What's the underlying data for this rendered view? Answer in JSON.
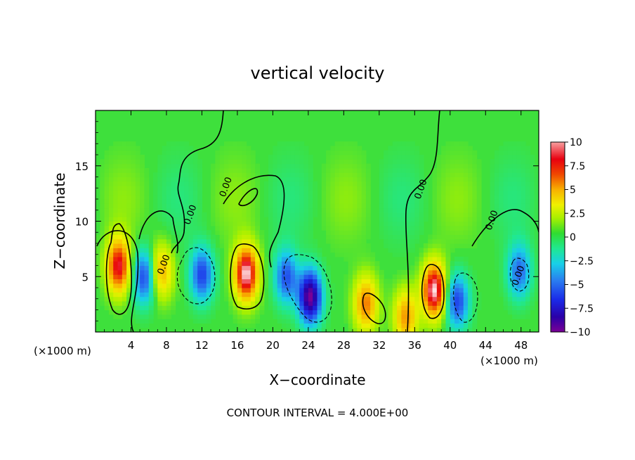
{
  "chart_data": {
    "type": "heatmap",
    "title": "vertical velocity",
    "xlabel": "X−coordinate",
    "ylabel": "Z−coordinate",
    "x_unit_left": "(×1000 m)",
    "x_unit_right": "(×1000 m)",
    "footer": "CONTOUR INTERVAL = 4.000E+00",
    "xlim": [
      0,
      50
    ],
    "ylim": [
      0,
      20
    ],
    "x_ticks": [
      4,
      8,
      12,
      16,
      20,
      24,
      28,
      32,
      36,
      40,
      44,
      48
    ],
    "y_ticks": [
      5,
      10,
      15
    ],
    "colorbar": {
      "range": [
        -10,
        10
      ],
      "ticks": [
        {
          "value": 10,
          "label": "10"
        },
        {
          "value": 7.5,
          "label": "7.5"
        },
        {
          "value": 5,
          "label": "5"
        },
        {
          "value": 2.5,
          "label": "2.5"
        },
        {
          "value": 0,
          "label": "0"
        },
        {
          "value": -2.5,
          "label": "−2.5"
        },
        {
          "value": -5,
          "label": "−5"
        },
        {
          "value": -7.5,
          "label": "−7.5"
        },
        {
          "value": -10,
          "label": "−10"
        }
      ]
    },
    "contour_label": "0.00",
    "contour_label_positions": [
      [
        11,
        10.5
      ],
      [
        8,
        6
      ],
      [
        15,
        13
      ],
      [
        37,
        12.8
      ],
      [
        45,
        10
      ],
      [
        48,
        5
      ]
    ],
    "features": [
      {
        "x": 2.6,
        "z": 6.0,
        "w": 8.5,
        "note": "updraft"
      },
      {
        "x": 17.0,
        "z": 5.3,
        "w": 10,
        "note": "strong updraft"
      },
      {
        "x": 38.2,
        "z": 3.8,
        "w": 10,
        "note": "strong updraft"
      },
      {
        "x": 30.5,
        "z": 2.6,
        "w": 6,
        "note": "updraft"
      },
      {
        "x": 35.0,
        "z": 1.4,
        "w": 5.5,
        "note": "updraft"
      },
      {
        "x": 7.4,
        "z": 5.5,
        "w": 5,
        "note": "updraft"
      },
      {
        "x": 12.0,
        "z": 5.2,
        "w": -6,
        "note": "downdraft"
      },
      {
        "x": 24.2,
        "z": 3.2,
        "w": -10,
        "note": "strong downdraft"
      },
      {
        "x": 21.5,
        "z": 5.0,
        "w": -5.5,
        "note": "downdraft"
      },
      {
        "x": 40.8,
        "z": 2.8,
        "w": -6,
        "note": "downdraft"
      },
      {
        "x": 5.5,
        "z": 5.0,
        "w": -6,
        "note": "downdraft"
      },
      {
        "x": 47.8,
        "z": 5.5,
        "w": -5,
        "note": "downdraft"
      }
    ]
  }
}
